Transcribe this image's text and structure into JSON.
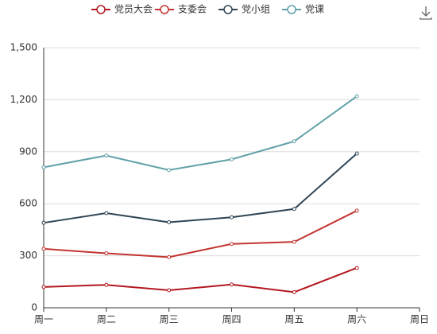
{
  "chart_data": {
    "type": "line",
    "stacked": true,
    "categories": [
      "周一",
      "周二",
      "周三",
      "周四",
      "周五",
      "周六",
      "周日"
    ],
    "series": [
      {
        "name": "党员大会",
        "color": "#b3181f",
        "values": [
          120,
          132,
          101,
          134,
          90,
          230,
          null
        ]
      },
      {
        "name": "支委会",
        "color": "#c23531",
        "values": [
          220,
          182,
          191,
          234,
          290,
          330,
          null
        ]
      },
      {
        "name": "党小组",
        "color": "#2f4554",
        "values": [
          150,
          232,
          201,
          154,
          190,
          330,
          null
        ]
      },
      {
        "name": "党课",
        "color": "#61a0a8",
        "values": [
          320,
          332,
          301,
          334,
          390,
          330,
          null
        ]
      }
    ],
    "ylim": [
      0,
      1500
    ],
    "yticks": [
      0,
      300,
      600,
      900,
      {
        "value": 1200,
        "label": "1,200"
      },
      {
        "value": 1500,
        "label": "1,500"
      }
    ],
    "grid": true,
    "legend": "top"
  }
}
